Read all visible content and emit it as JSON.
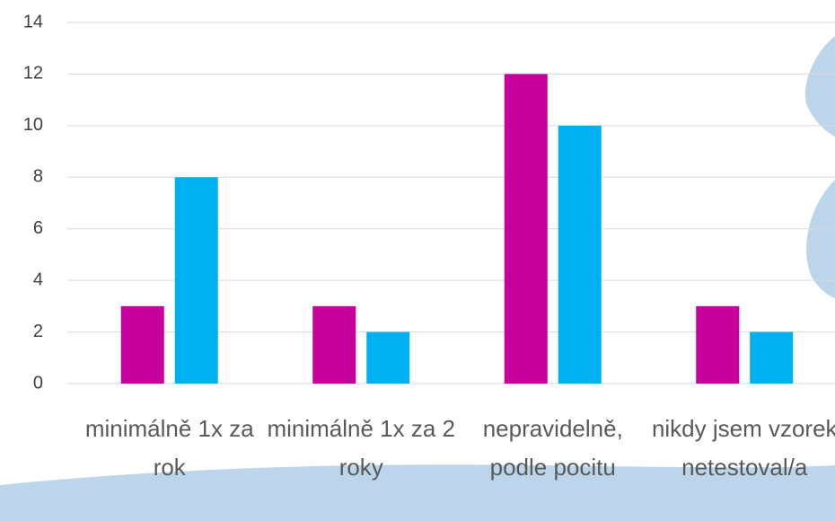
{
  "chart_data": {
    "type": "bar",
    "categories": [
      "minimálně 1x za rok",
      "minimálně 1x za 2 roky",
      "nepravidelně, podle pocitu",
      "nikdy jsem vzorek netestoval/a"
    ],
    "series": [
      {
        "color": "#c8009b",
        "values": [
          3,
          3,
          12,
          3
        ]
      },
      {
        "color": "#00b0f0",
        "values": [
          8,
          2,
          10,
          2
        ]
      }
    ],
    "ylim": [
      0,
      14
    ],
    "yticks": [
      0,
      2,
      4,
      6,
      8,
      10,
      12,
      14
    ],
    "grid": true
  }
}
